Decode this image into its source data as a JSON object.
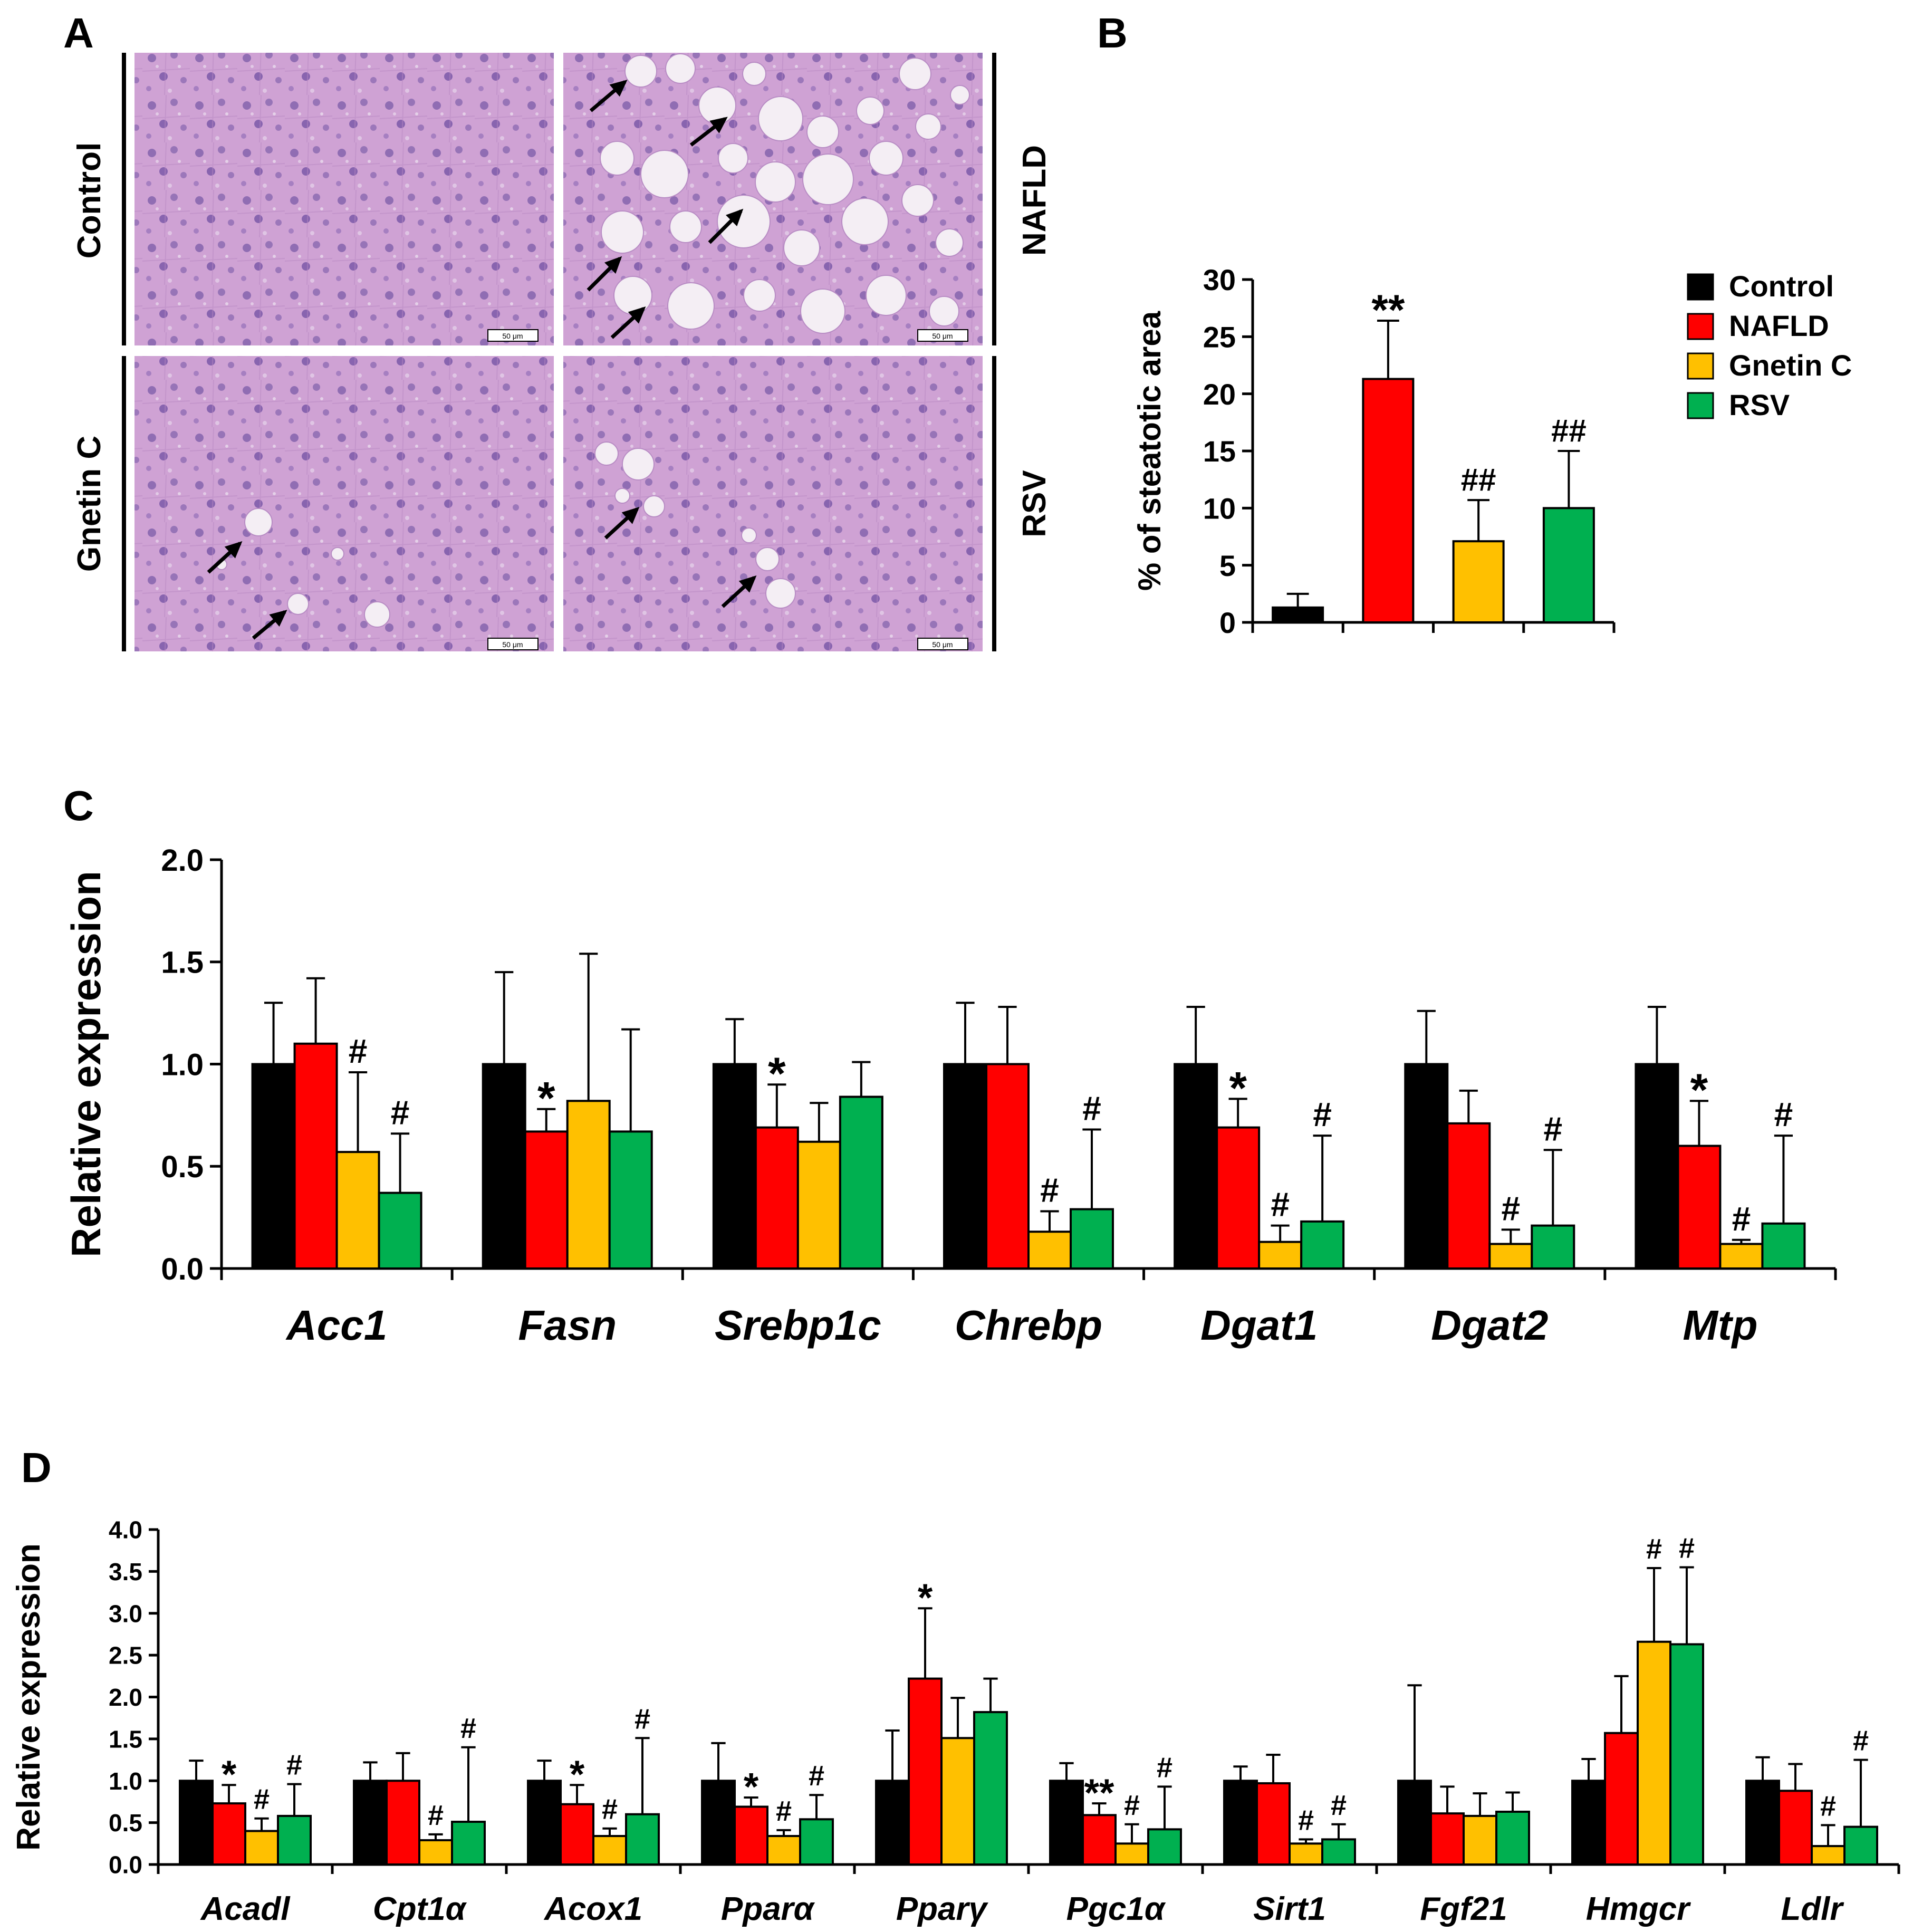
{
  "panels": {
    "A": "A",
    "B": "B",
    "C": "C",
    "D": "D"
  },
  "histology": {
    "labels": [
      "Control",
      "NAFLD",
      "Gnetin C",
      "RSV"
    ],
    "scale_bar_text": "50 μm",
    "colors": {
      "stain_base": "#cc9fd2",
      "stain_dark": "#5e3f92",
      "nucleus": "#6a4aa0",
      "vacuole": "#f4eef4"
    }
  },
  "legend": {
    "items": [
      {
        "label": "Control",
        "color": "#000000"
      },
      {
        "label": "NAFLD",
        "color": "#ff0000"
      },
      {
        "label": "Gnetin C",
        "color": "#ffc000"
      },
      {
        "label": "RSV",
        "color": "#00b050"
      }
    ]
  },
  "chart_data": [
    {
      "panel": "B",
      "type": "bar",
      "categories": [
        "Control",
        "NAFLD",
        "Gnetin C",
        "RSV"
      ],
      "values": [
        1.3,
        21.3,
        7.1,
        10.0
      ],
      "errors": [
        1.2,
        5.1,
        3.6,
        5.0
      ],
      "annotations": [
        "",
        "**",
        "##",
        "##"
      ],
      "ylabel": "% of steatotic area",
      "ylim": [
        0,
        30
      ],
      "yticks": [
        0,
        5,
        10,
        15,
        20,
        25,
        30
      ],
      "legend": "right"
    },
    {
      "panel": "C",
      "type": "bar",
      "categories": [
        "Acc1",
        "Fasn",
        "Srebp1c",
        "Chrebp",
        "Dgat1",
        "Dgat2",
        "Mtp"
      ],
      "series": [
        {
          "name": "Control",
          "color": "#000000",
          "values": [
            1.0,
            1.0,
            1.0,
            1.0,
            1.0,
            1.0,
            1.0
          ],
          "errors": [
            0.3,
            0.45,
            0.22,
            0.3,
            0.28,
            0.26,
            0.28
          ],
          "annotations": [
            "",
            "",
            "",
            "",
            "",
            "",
            ""
          ]
        },
        {
          "name": "NAFLD",
          "color": "#ff0000",
          "values": [
            1.1,
            0.67,
            0.69,
            1.0,
            0.69,
            0.71,
            0.6
          ],
          "errors": [
            0.32,
            0.11,
            0.21,
            0.28,
            0.14,
            0.16,
            0.22
          ],
          "annotations": [
            "",
            "*",
            "*",
            "",
            "*",
            "",
            "*"
          ]
        },
        {
          "name": "Gnetin C",
          "color": "#ffc000",
          "values": [
            0.57,
            0.82,
            0.62,
            0.18,
            0.13,
            0.12,
            0.12
          ],
          "errors": [
            0.39,
            0.72,
            0.19,
            0.1,
            0.08,
            0.07,
            0.02
          ],
          "annotations": [
            "#",
            "",
            "",
            "#",
            "#",
            "#",
            "#"
          ]
        },
        {
          "name": "RSV",
          "color": "#00b050",
          "values": [
            0.37,
            0.67,
            0.84,
            0.29,
            0.23,
            0.21,
            0.22
          ],
          "errors": [
            0.29,
            0.5,
            0.17,
            0.39,
            0.42,
            0.37,
            0.43
          ],
          "annotations": [
            "#",
            "",
            "",
            "#",
            "#",
            "#",
            "#"
          ]
        }
      ],
      "ylabel": "Relative expression",
      "ylim": [
        0,
        2.0
      ],
      "yticks": [
        "0.0",
        "0.5",
        "1.0",
        "1.5",
        "2.0"
      ]
    },
    {
      "panel": "D",
      "type": "bar",
      "categories": [
        "Acadl",
        "Cpt1α",
        "Acox1",
        "Pparα",
        "Pparγ",
        "Pgc1α",
        "Sirt1",
        "Fgf21",
        "Hmgcr",
        "Ldlr"
      ],
      "series": [
        {
          "name": "Control",
          "color": "#000000",
          "values": [
            1.0,
            1.0,
            1.0,
            1.0,
            1.0,
            1.0,
            1.0,
            1.0,
            1.0,
            1.0
          ],
          "errors": [
            0.24,
            0.22,
            0.24,
            0.45,
            0.6,
            0.21,
            0.17,
            1.14,
            0.26,
            0.28
          ],
          "annotations": [
            "",
            "",
            "",
            "",
            "",
            "",
            "",
            "",
            "",
            ""
          ]
        },
        {
          "name": "NAFLD",
          "color": "#ff0000",
          "values": [
            0.73,
            1.0,
            0.72,
            0.69,
            2.22,
            0.59,
            0.97,
            0.61,
            1.57,
            0.88
          ],
          "errors": [
            0.22,
            0.33,
            0.23,
            0.11,
            0.84,
            0.14,
            0.34,
            0.32,
            0.68,
            0.32
          ],
          "annotations": [
            "*",
            "",
            "*",
            "*",
            "*",
            "**",
            "",
            "",
            "",
            ""
          ]
        },
        {
          "name": "Gnetin C",
          "color": "#ffc000",
          "values": [
            0.4,
            0.29,
            0.34,
            0.34,
            1.51,
            0.25,
            0.25,
            0.58,
            2.66,
            0.22
          ],
          "errors": [
            0.15,
            0.07,
            0.09,
            0.07,
            0.48,
            0.23,
            0.05,
            0.27,
            0.88,
            0.25
          ],
          "annotations": [
            "#",
            "#",
            "#",
            "#",
            "",
            "#",
            "#",
            "",
            "#",
            "#"
          ]
        },
        {
          "name": "RSV",
          "color": "#00b050",
          "values": [
            0.58,
            0.51,
            0.6,
            0.54,
            1.82,
            0.42,
            0.3,
            0.63,
            2.63,
            0.45
          ],
          "errors": [
            0.38,
            0.89,
            0.91,
            0.29,
            0.4,
            0.51,
            0.18,
            0.23,
            0.92,
            0.8
          ],
          "annotations": [
            "#",
            "#",
            "#",
            "#",
            "",
            "#",
            "#",
            "",
            "#",
            "#"
          ]
        }
      ],
      "ylabel": "Relative expression",
      "ylim": [
        0,
        4.0
      ],
      "yticks": [
        "0.0",
        "0.5",
        "1.0",
        "1.5",
        "2.0",
        "2.5",
        "3.0",
        "3.5",
        "4.0"
      ]
    }
  ]
}
